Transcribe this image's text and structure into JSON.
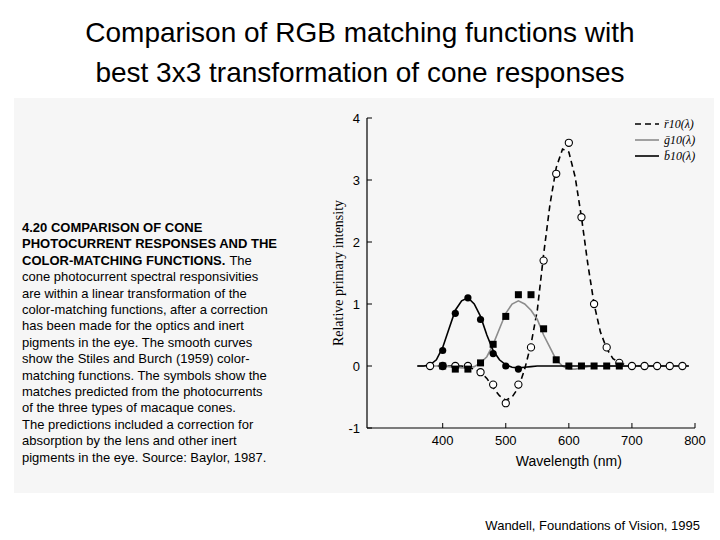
{
  "chart_data": {
    "type": "line",
    "title": [
      "Comparison of RGB matching functions with",
      "best 3x3 transformation of cone responses"
    ],
    "x_label": "Wavelength (nm)",
    "y_label": "Relative primary intensity",
    "xlim": [
      280,
      800
    ],
    "xticks": [
      400,
      500,
      600,
      700,
      800
    ],
    "ylim": [
      -1,
      4
    ],
    "yticks": [
      -1,
      0,
      1,
      2,
      3,
      4
    ],
    "legend": "upper-right",
    "x": [
      360,
      370,
      380,
      390,
      400,
      410,
      420,
      430,
      440,
      450,
      460,
      470,
      480,
      490,
      500,
      510,
      520,
      530,
      540,
      550,
      560,
      570,
      580,
      590,
      600,
      610,
      620,
      630,
      640,
      650,
      660,
      670,
      680,
      690,
      700,
      710,
      720,
      730,
      740,
      750,
      760,
      770,
      780,
      790
    ],
    "series": [
      {
        "name": "r̄10(λ)",
        "type": "line",
        "color": "#000000",
        "line_style": "dashed",
        "values": [
          0,
          0,
          0,
          0,
          0,
          0,
          0,
          0,
          -0.02,
          -0.05,
          -0.1,
          -0.2,
          -0.35,
          -0.48,
          -0.55,
          -0.5,
          -0.35,
          -0.05,
          0.35,
          0.9,
          1.8,
          2.6,
          3.2,
          3.5,
          3.45,
          3.05,
          2.4,
          1.65,
          1.0,
          0.55,
          0.28,
          0.12,
          0.05,
          0.02,
          0,
          0,
          0,
          0,
          0,
          0,
          0,
          0,
          0,
          0
        ]
      },
      {
        "name": "ḡ10(λ)",
        "type": "line",
        "color": "#8c8c8c",
        "line_style": "solid",
        "values": [
          0,
          0,
          0,
          0,
          0,
          -0.01,
          -0.02,
          -0.03,
          -0.03,
          -0.01,
          0.05,
          0.15,
          0.35,
          0.6,
          0.85,
          1.0,
          1.05,
          1.0,
          0.9,
          0.75,
          0.5,
          0.3,
          0.1,
          0,
          -0.05,
          -0.05,
          -0.03,
          -0.01,
          0,
          0,
          0,
          0,
          0,
          0,
          0,
          0,
          0,
          0,
          0,
          0,
          0,
          0,
          0,
          0
        ]
      },
      {
        "name": "b̄10(λ)",
        "type": "line",
        "color": "#000000",
        "line_style": "solid",
        "values": [
          0,
          0,
          0.02,
          0.1,
          0.3,
          0.6,
          0.9,
          1.05,
          1.1,
          1.0,
          0.8,
          0.5,
          0.25,
          0.1,
          0.02,
          -0.02,
          -0.03,
          -0.02,
          -0.01,
          0,
          0,
          0,
          0,
          0,
          0,
          0,
          0,
          0,
          0,
          0,
          0,
          0,
          0,
          0,
          0,
          0,
          0,
          0,
          0,
          0,
          0,
          0,
          0,
          0
        ]
      },
      {
        "type": "scatter",
        "marker": "circle-open",
        "color": "#000000",
        "values": [
          null,
          null,
          0,
          null,
          0,
          null,
          0,
          null,
          0,
          null,
          -0.1,
          null,
          -0.3,
          null,
          -0.6,
          null,
          -0.3,
          null,
          0.3,
          null,
          1.7,
          null,
          3.1,
          null,
          3.6,
          null,
          2.4,
          null,
          1.0,
          null,
          0.3,
          null,
          0.05,
          null,
          0,
          null,
          0,
          null,
          0,
          null,
          0,
          null,
          0,
          null
        ]
      },
      {
        "type": "scatter",
        "marker": "square",
        "color": "#000000",
        "values": [
          null,
          null,
          null,
          null,
          0,
          null,
          -0.05,
          null,
          -0.05,
          null,
          0.05,
          null,
          0.35,
          null,
          0.8,
          null,
          1.15,
          null,
          1.15,
          null,
          0.6,
          null,
          0.1,
          null,
          0,
          null,
          0,
          null,
          0,
          null,
          0,
          null,
          0,
          null,
          null,
          null,
          null,
          null,
          null,
          null,
          null,
          null,
          null,
          null
        ]
      },
      {
        "type": "scatter",
        "marker": "circle",
        "color": "#000000",
        "values": [
          null,
          null,
          null,
          null,
          0.25,
          null,
          0.85,
          null,
          1.1,
          null,
          0.75,
          null,
          0.2,
          null,
          0,
          null,
          -0.05,
          null,
          null,
          null,
          null,
          null,
          null,
          null,
          null,
          null,
          null,
          null,
          null,
          null,
          null,
          null,
          null,
          null,
          null,
          null,
          null,
          null,
          null,
          null,
          null,
          null,
          null,
          null
        ]
      }
    ]
  },
  "caption": {
    "heading": [
      "4.20 COMPARISON OF CONE",
      "PHOTOCURRENT RESPONSES AND THE",
      "COLOR-MATCHING FUNCTIONS."
    ],
    "body": [
      "The",
      "cone photocurrent spectral responsivities",
      "are within a linear transformation of the",
      "color-matching functions, after a correction",
      "has been made for the optics and inert",
      "pigments in the eye. The smooth curves",
      "show the Stiles and Burch (1959) color-",
      "matching functions. The symbols show the",
      "matches predicted from the photocurrents",
      "of the three types of macaque cones.",
      "The predictions included a correction for",
      "absorption by the lens and other inert",
      "pigments in the eye. Source: Baylor, 1987."
    ]
  },
  "source": "Wandell, Foundations of Vision, 1995"
}
